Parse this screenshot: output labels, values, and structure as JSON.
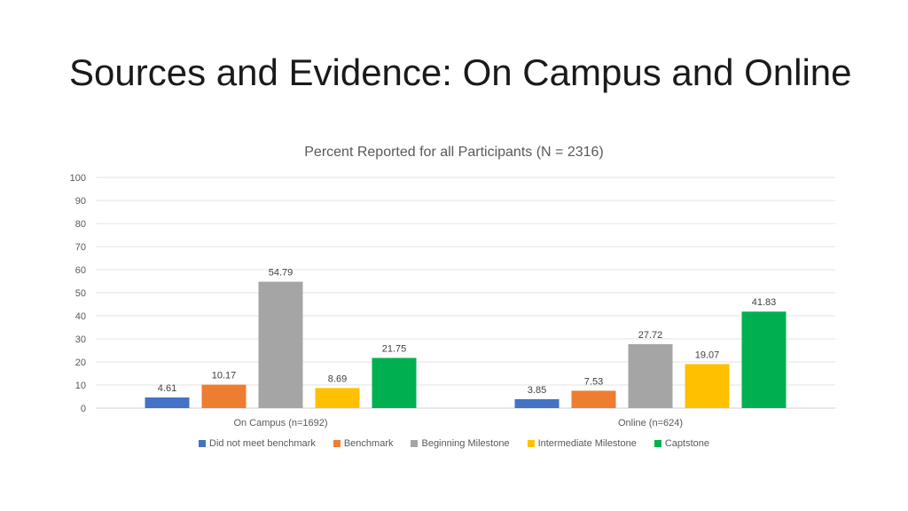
{
  "slide": {
    "title": "Sources and Evidence: On Campus and Online"
  },
  "chart_data": {
    "type": "bar",
    "title": "Percent Reported for all Participants (N = 2316)",
    "xlabel": "",
    "ylabel": "",
    "categories": [
      "On Campus (n=1692)",
      "Online (n=624)"
    ],
    "ylim": [
      0,
      100
    ],
    "yticks": [
      0,
      10,
      20,
      30,
      40,
      50,
      60,
      70,
      80,
      90,
      100
    ],
    "grid": true,
    "legend_position": "bottom",
    "series": [
      {
        "name": "Did not meet benchmark",
        "color": "#4472C4",
        "values": [
          4.61,
          3.85
        ]
      },
      {
        "name": "Benchmark",
        "color": "#ED7D31",
        "values": [
          10.17,
          7.53
        ]
      },
      {
        "name": "Beginning Milestone",
        "color": "#A5A5A5",
        "values": [
          54.79,
          27.72
        ]
      },
      {
        "name": "Intermediate Milestone",
        "color": "#FFC000",
        "values": [
          8.69,
          19.07
        ]
      },
      {
        "name": "Captstone",
        "color": "#00B050",
        "values": [
          21.75,
          41.83
        ]
      }
    ]
  }
}
